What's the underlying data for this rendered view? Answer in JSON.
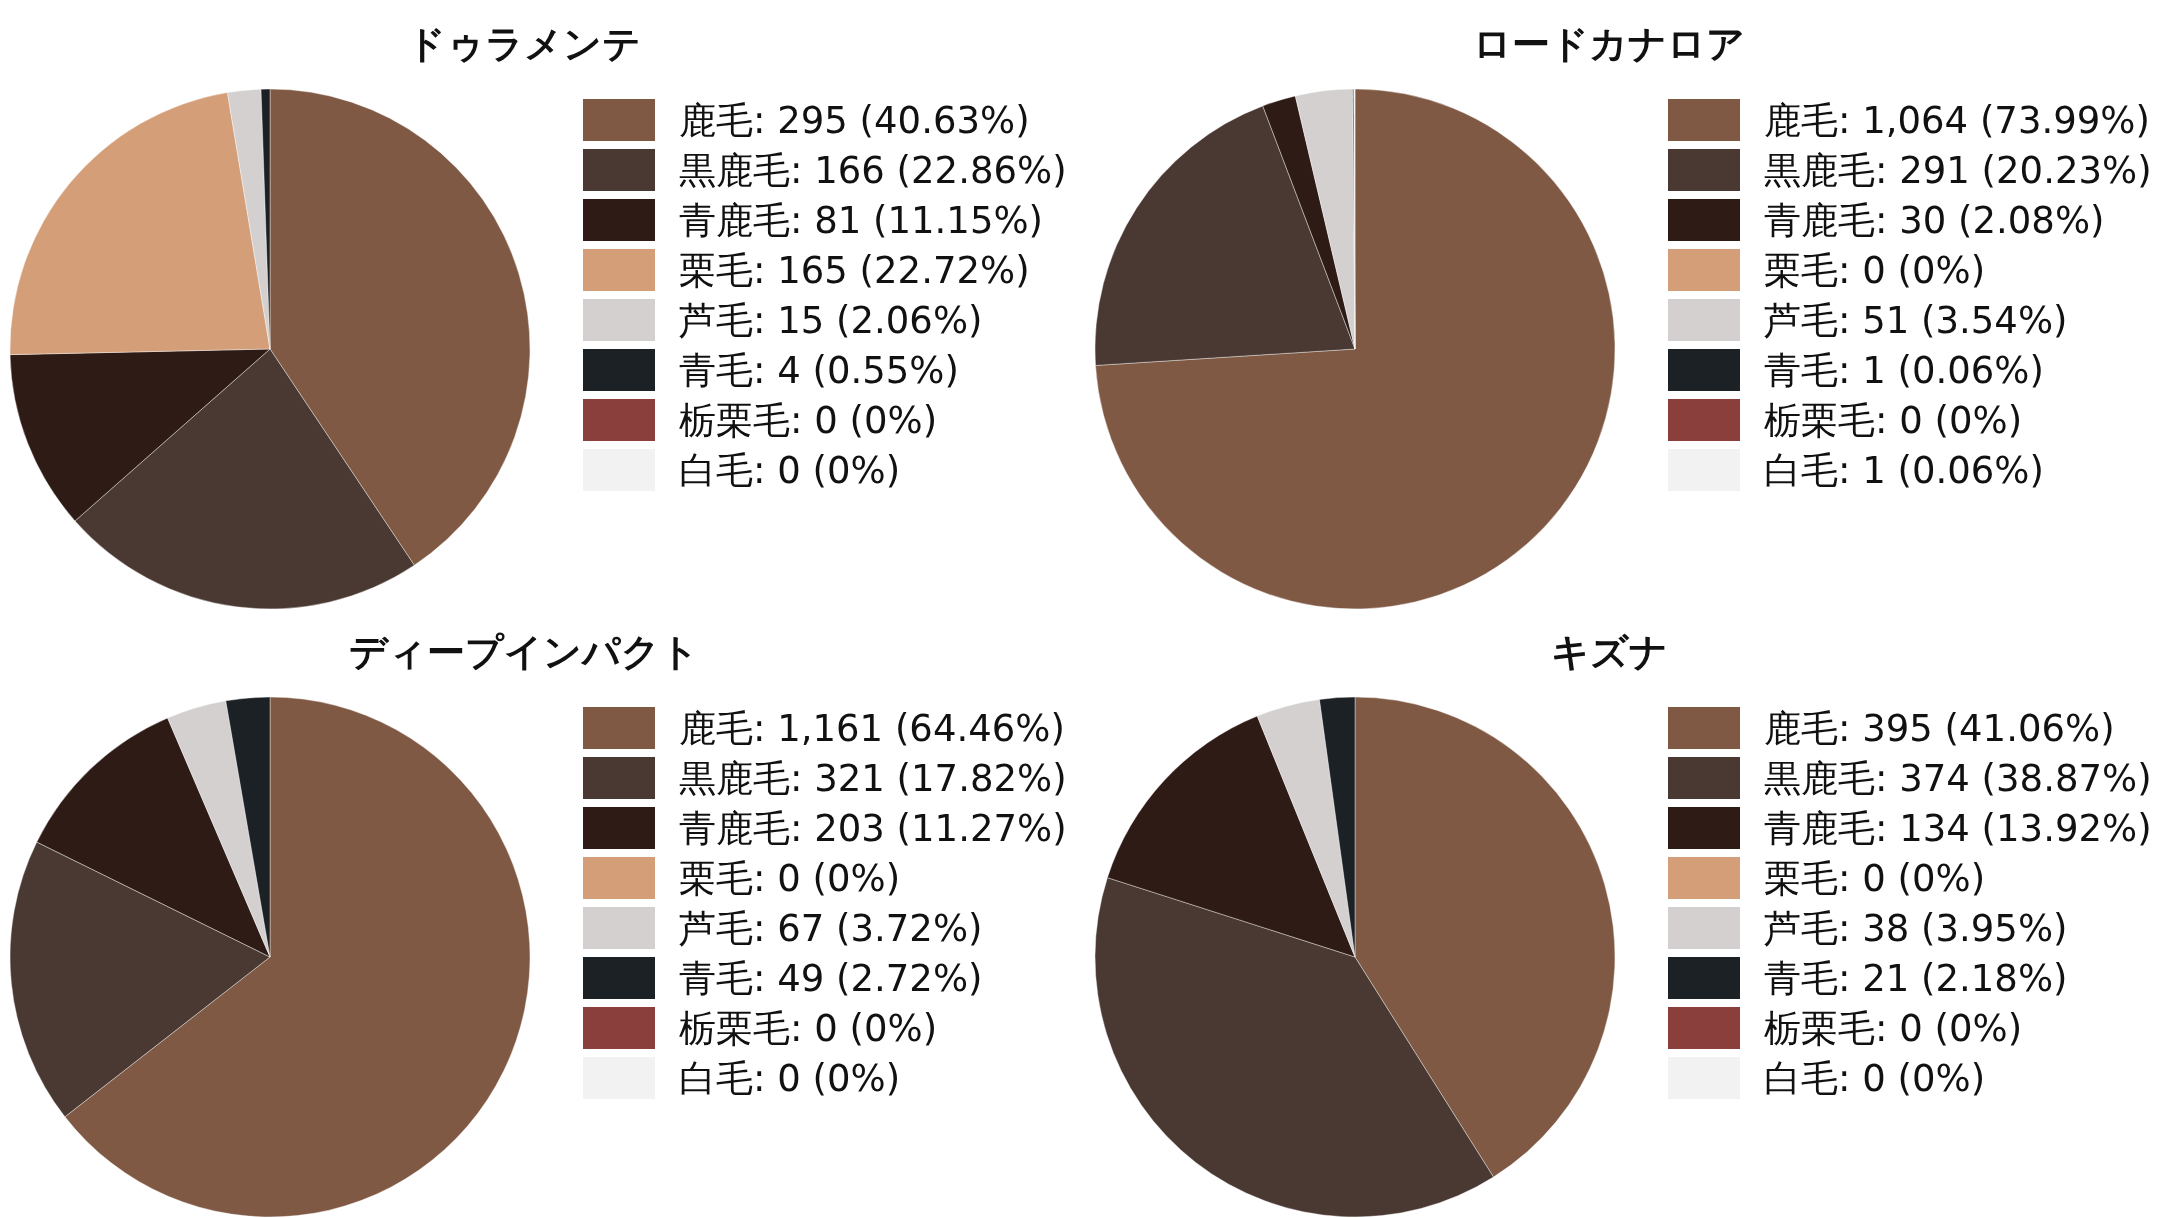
{
  "chart_data": [
    {
      "type": "pie",
      "title": "ドゥラメンテ",
      "legend": "right",
      "categories": [
        "鹿毛: 295 (40.63%)",
        "黒鹿毛: 166 (22.86%)",
        "青鹿毛: 81 (11.15%)",
        "栗毛: 165 (22.72%)",
        "芦毛: 15 (2.06%)",
        "青毛: 4 (0.55%)",
        "栃栗毛: 0 (0%)",
        "白毛: 0 (0%)"
      ],
      "values": [
        295,
        166,
        81,
        165,
        15,
        4,
        0,
        0
      ],
      "colors": [
        "#7f5943",
        "#4a3932",
        "#2f1b15",
        "#d49e78",
        "#d3d0cf",
        "#1c2126",
        "#8b3f3c",
        "#f2f2f2"
      ]
    },
    {
      "type": "pie",
      "title": "ロードカナロア",
      "legend": "right",
      "categories": [
        "鹿毛: 1,064 (73.99%)",
        "黒鹿毛: 291 (20.23%)",
        "青鹿毛: 30 (2.08%)",
        "栗毛: 0 (0%)",
        "芦毛: 51 (3.54%)",
        "青毛: 1 (0.06%)",
        "栃栗毛: 0 (0%)",
        "白毛: 1 (0.06%)"
      ],
      "values": [
        1064,
        291,
        30,
        0,
        51,
        1,
        0,
        1
      ],
      "colors": [
        "#7f5943",
        "#4a3932",
        "#2f1b15",
        "#d49e78",
        "#d3d0cf",
        "#1c2126",
        "#8b3f3c",
        "#f2f2f2"
      ]
    },
    {
      "type": "pie",
      "title": "ディープインパクト",
      "legend": "right",
      "categories": [
        "鹿毛: 1,161 (64.46%)",
        "黒鹿毛: 321 (17.82%)",
        "青鹿毛: 203 (11.27%)",
        "栗毛: 0 (0%)",
        "芦毛: 67 (3.72%)",
        "青毛: 49 (2.72%)",
        "栃栗毛: 0 (0%)",
        "白毛: 0 (0%)"
      ],
      "values": [
        1161,
        321,
        203,
        0,
        67,
        49,
        0,
        0
      ],
      "colors": [
        "#7f5943",
        "#4a3932",
        "#2f1b15",
        "#d49e78",
        "#d3d0cf",
        "#1c2126",
        "#8b3f3c",
        "#f2f2f2"
      ]
    },
    {
      "type": "pie",
      "title": "キズナ",
      "legend": "right",
      "categories": [
        "鹿毛: 395 (41.06%)",
        "黒鹿毛: 374 (38.87%)",
        "青鹿毛: 134 (13.92%)",
        "栗毛: 0 (0%)",
        "芦毛: 38 (3.95%)",
        "青毛: 21 (2.18%)",
        "栃栗毛: 0 (0%)",
        "白毛: 0 (0%)"
      ],
      "values": [
        395,
        374,
        134,
        0,
        38,
        21,
        0,
        0
      ],
      "colors": [
        "#7f5943",
        "#4a3932",
        "#2f1b15",
        "#d49e78",
        "#d3d0cf",
        "#1c2126",
        "#8b3f3c",
        "#f2f2f2"
      ]
    }
  ]
}
